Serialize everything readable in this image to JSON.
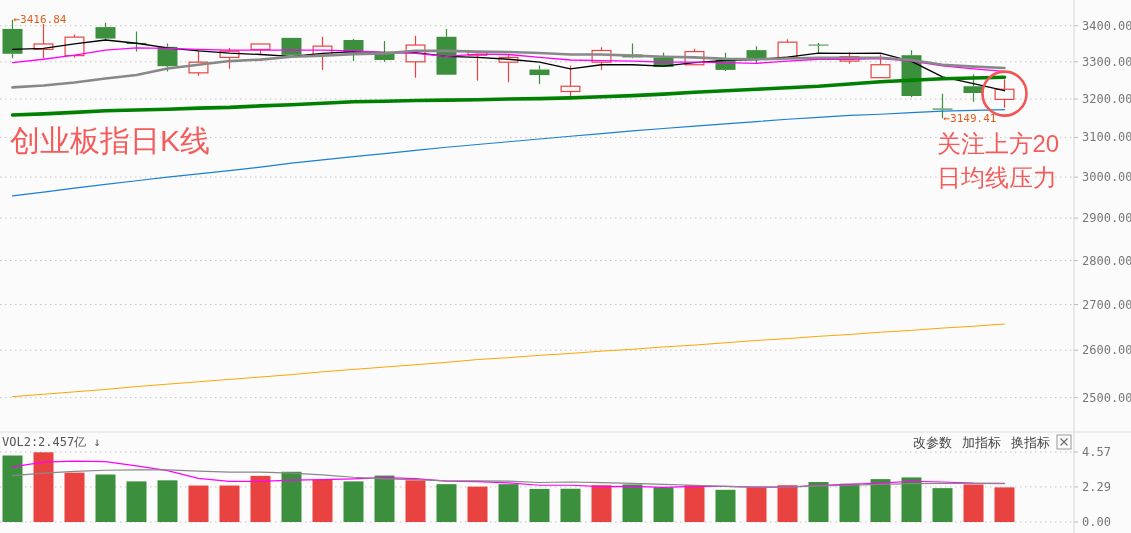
{
  "chart_data": [
    {
      "type": "candlestick",
      "title": "创业板指日K线",
      "categories": [
        null,
        null,
        null,
        null,
        null,
        null,
        null,
        null,
        null,
        null,
        null,
        null,
        null,
        null,
        null,
        null,
        null,
        null,
        null,
        null,
        null,
        null,
        null,
        null,
        null,
        null,
        null,
        null,
        null,
        null,
        null,
        null,
        null
      ],
      "ohlc": [
        [
          3391,
          3416.84,
          3310,
          3322
        ],
        [
          3334,
          3405,
          3310,
          3349
        ],
        [
          3317,
          3375,
          3312,
          3368
        ],
        [
          3396,
          3408,
          3359,
          3364
        ],
        [
          3352,
          3384,
          3328,
          3349
        ],
        [
          3341,
          3350,
          3274,
          3288
        ],
        [
          3270,
          3330,
          3262,
          3299
        ],
        [
          3312,
          3338,
          3281,
          3329
        ],
        [
          3334,
          3349,
          3318,
          3349
        ],
        [
          3366,
          3366,
          3318,
          3319
        ],
        [
          3318,
          3369,
          3278,
          3343
        ],
        [
          3360,
          3363,
          3302,
          3326
        ],
        [
          3326,
          3357,
          3300,
          3305
        ],
        [
          3300,
          3372,
          3257,
          3346
        ],
        [
          3369,
          3391,
          3265,
          3265
        ],
        [
          3318,
          3327,
          3249,
          3327
        ],
        [
          3299,
          3320,
          3245,
          3312
        ],
        [
          3279,
          3290,
          3240,
          3264
        ],
        [
          3220,
          3290,
          3205,
          3234
        ],
        [
          3299,
          3340,
          3278,
          3331
        ],
        [
          3320,
          3350,
          3310,
          3312
        ],
        [
          3312,
          3325,
          3286,
          3286
        ],
        [
          3292,
          3336,
          3292,
          3328
        ],
        [
          3305,
          3325,
          3275,
          3278
        ],
        [
          3332,
          3343,
          3295,
          3305
        ],
        [
          3312,
          3362,
          3310,
          3354
        ],
        [
          3346,
          3352,
          3323,
          3345
        ],
        [
          3302,
          3326,
          3295,
          3314
        ],
        [
          3257,
          3320,
          3257,
          3292
        ],
        [
          3318,
          3332,
          3205,
          3208
        ],
        [
          3175,
          3214,
          3149.41,
          3172
        ],
        [
          3234,
          3266,
          3193,
          3216
        ],
        [
          3199,
          3252,
          3177,
          3226
        ]
      ],
      "colors": [
        "#3c8f3c",
        "#e84340",
        "#e84340",
        "#3c8f3c",
        "#3c8f3c",
        "#3c8f3c",
        "#e84340",
        "#e84340",
        "#e84340",
        "#3c8f3c",
        "#e84340",
        "#3c8f3c",
        "#3c8f3c",
        "#e84340",
        "#3c8f3c",
        "#e84340",
        "#e84340",
        "#3c8f3c",
        "#e84340",
        "#e84340",
        "#3c8f3c",
        "#3c8f3c",
        "#e84340",
        "#3c8f3c",
        "#3c8f3c",
        "#e84340",
        "#3c8f3c",
        "#e84340",
        "#e84340",
        "#3c8f3c",
        "#3c8f3c",
        "#3c8f3c",
        "#e84340"
      ],
      "series": [
        {
          "type": "line",
          "color": "#000000",
          "values": [
            3334,
            3337,
            3349,
            3360,
            3351,
            3338,
            3330,
            3324,
            3320,
            3315,
            3323,
            3328,
            3326,
            3325,
            3315,
            3312,
            3307,
            3299,
            3281,
            3292,
            3292,
            3288,
            3298,
            3304,
            3306,
            3313,
            3324,
            3323,
            3324,
            3301,
            3259,
            3241,
            3222
          ]
        },
        {
          "type": "line",
          "color": "#ff00ff",
          "values": [
            3298,
            3307,
            3318,
            3332,
            3338,
            3337,
            3334,
            3332,
            3332,
            3332,
            3332,
            3330,
            3325,
            3323,
            3315,
            3321,
            3320,
            3312,
            3305,
            3303,
            3302,
            3299,
            3299,
            3298,
            3296,
            3302,
            3307,
            3307,
            3309,
            3302,
            3289,
            3281,
            3274
          ]
        },
        {
          "type": "line",
          "color": "#888888",
          "values": [
            3231,
            3236,
            3244,
            3255,
            3264,
            3282,
            3292,
            3302,
            3306,
            3314,
            3317,
            3321,
            3323,
            3330,
            3330,
            3328,
            3327,
            3324,
            3320,
            3320,
            3317,
            3314,
            3312,
            3308,
            3307,
            3309,
            3311,
            3311,
            3311,
            3305,
            3292,
            3287,
            3283
          ]
        },
        {
          "type": "line",
          "color": "#008000",
          "values": [
            3158,
            3161,
            3165,
            3169,
            3171,
            3173,
            3176,
            3178,
            3182,
            3185,
            3189,
            3193,
            3194,
            3196,
            3197,
            3198,
            3200,
            3201,
            3203,
            3206,
            3209,
            3213,
            3218,
            3222,
            3226,
            3230,
            3234,
            3240,
            3246,
            3250,
            3254,
            3256,
            3258
          ]
        },
        {
          "type": "line",
          "color": "#1a7fd4",
          "values": [
            2954,
            2963,
            2973,
            2982,
            2991,
            3000,
            3008,
            3016,
            3025,
            3035,
            3043,
            3051,
            3059,
            3067,
            3075,
            3082,
            3089,
            3096,
            3103,
            3110,
            3117,
            3123,
            3129,
            3135,
            3141,
            3147,
            3152,
            3157,
            3160,
            3164,
            3168,
            3170,
            3172
          ]
        },
        {
          "type": "line",
          "color": "#ffa500",
          "values": [
            2502,
            2507,
            2512,
            2517,
            2523,
            2528,
            2533,
            2538,
            2543,
            2548,
            2554,
            2559,
            2564,
            2569,
            2574,
            2580,
            2584,
            2589,
            2593,
            2598,
            2602,
            2607,
            2611,
            2616,
            2621,
            2625,
            2630,
            2634,
            2639,
            2643,
            2648,
            2652,
            2657
          ]
        }
      ],
      "log": true,
      "ylim": [
        2430,
        3473
      ],
      "yticks": [
        {
          "value": 2500,
          "label": "2500.00"
        },
        {
          "value": 2600,
          "label": "2600.00"
        },
        {
          "value": 2700,
          "label": "2700.00"
        },
        {
          "value": 2800,
          "label": "2800.00"
        },
        {
          "value": 2900,
          "label": "2900.00"
        },
        {
          "value": 3000,
          "label": "3000.00"
        },
        {
          "value": 3100,
          "label": "3100.00"
        },
        {
          "value": 3200,
          "label": "3200.00"
        },
        {
          "value": 3300,
          "label": "3300.00"
        },
        {
          "value": 3400,
          "label": "3400.00"
        }
      ],
      "grid": "y",
      "tick_labels": "y",
      "annotations": [
        "←3416.84",
        "←3149.41",
        "关注上方20日均线压力"
      ]
    },
    {
      "type": "bar",
      "title": "VOL2:2.457亿 ↓",
      "categories": [
        null,
        null,
        null,
        null,
        null,
        null,
        null,
        null,
        null,
        null,
        null,
        null,
        null,
        null,
        null,
        null,
        null,
        null,
        null,
        null,
        null,
        null,
        null,
        null,
        null,
        null,
        null,
        null,
        null,
        null,
        null,
        null,
        null
      ],
      "series": [
        {
          "colors": [
            "#3c8f3c",
            "#e84340",
            "#e84340",
            "#3c8f3c",
            "#3c8f3c",
            "#3c8f3c",
            "#e84340",
            "#e84340",
            "#e84340",
            "#3c8f3c",
            "#e84340",
            "#3c8f3c",
            "#3c8f3c",
            "#e84340",
            "#3c8f3c",
            "#e84340",
            "#3c8f3c",
            "#3c8f3c",
            "#3c8f3c",
            "#e84340",
            "#3c8f3c",
            "#3c8f3c",
            "#e84340",
            "#3c8f3c",
            "#e84340",
            "#e84340",
            "#3c8f3c",
            "#3c8f3c",
            "#3c8f3c",
            "#3c8f3c",
            "#3c8f3c",
            "#e84340",
            "#e84340"
          ],
          "values": [
            4.34,
            4.55,
            3.22,
            3.1,
            2.65,
            2.72,
            2.38,
            2.38,
            3.01,
            3.28,
            2.76,
            2.65,
            3.03,
            2.72,
            2.47,
            2.31,
            2.47,
            2.16,
            2.17,
            2.4,
            2.45,
            2.26,
            2.4,
            2.1,
            2.26,
            2.4,
            2.61,
            2.5,
            2.8,
            2.91,
            2.21,
            2.45,
            2.26
          ]
        },
        {
          "type": "line",
          "color": "#ff00ff",
          "values": [
            3.6,
            3.91,
            3.98,
            3.94,
            3.67,
            3.35,
            2.85,
            2.65,
            2.65,
            2.74,
            2.76,
            2.81,
            2.9,
            2.83,
            2.67,
            2.63,
            2.56,
            2.4,
            2.4,
            2.31,
            2.33,
            2.26,
            2.33,
            2.33,
            2.28,
            2.28,
            2.4,
            2.45,
            2.54,
            2.66,
            2.61,
            2.54,
            2.52
          ]
        },
        {
          "type": "line",
          "color": "#888888",
          "values": [
            3.03,
            3.19,
            3.31,
            3.38,
            3.4,
            3.4,
            3.32,
            3.26,
            3.26,
            3.19,
            3.08,
            2.92,
            2.81,
            2.76,
            2.69,
            2.69,
            2.67,
            2.58,
            2.61,
            2.57,
            2.52,
            2.45,
            2.4,
            2.33,
            2.28,
            2.28,
            2.36,
            2.4,
            2.45,
            2.5,
            2.52,
            2.52,
            2.5
          ]
        }
      ],
      "ylim": [
        0,
        4.57
      ],
      "yticks": [
        {
          "value": 0,
          "label": "0.00"
        },
        {
          "value": 2.29,
          "label": "2.29"
        },
        {
          "value": 4.57,
          "label": "4.57"
        }
      ],
      "grid": "y",
      "tick_labels": "y",
      "annotations": [
        "改参数",
        "加指标",
        "换指标"
      ]
    }
  ]
}
